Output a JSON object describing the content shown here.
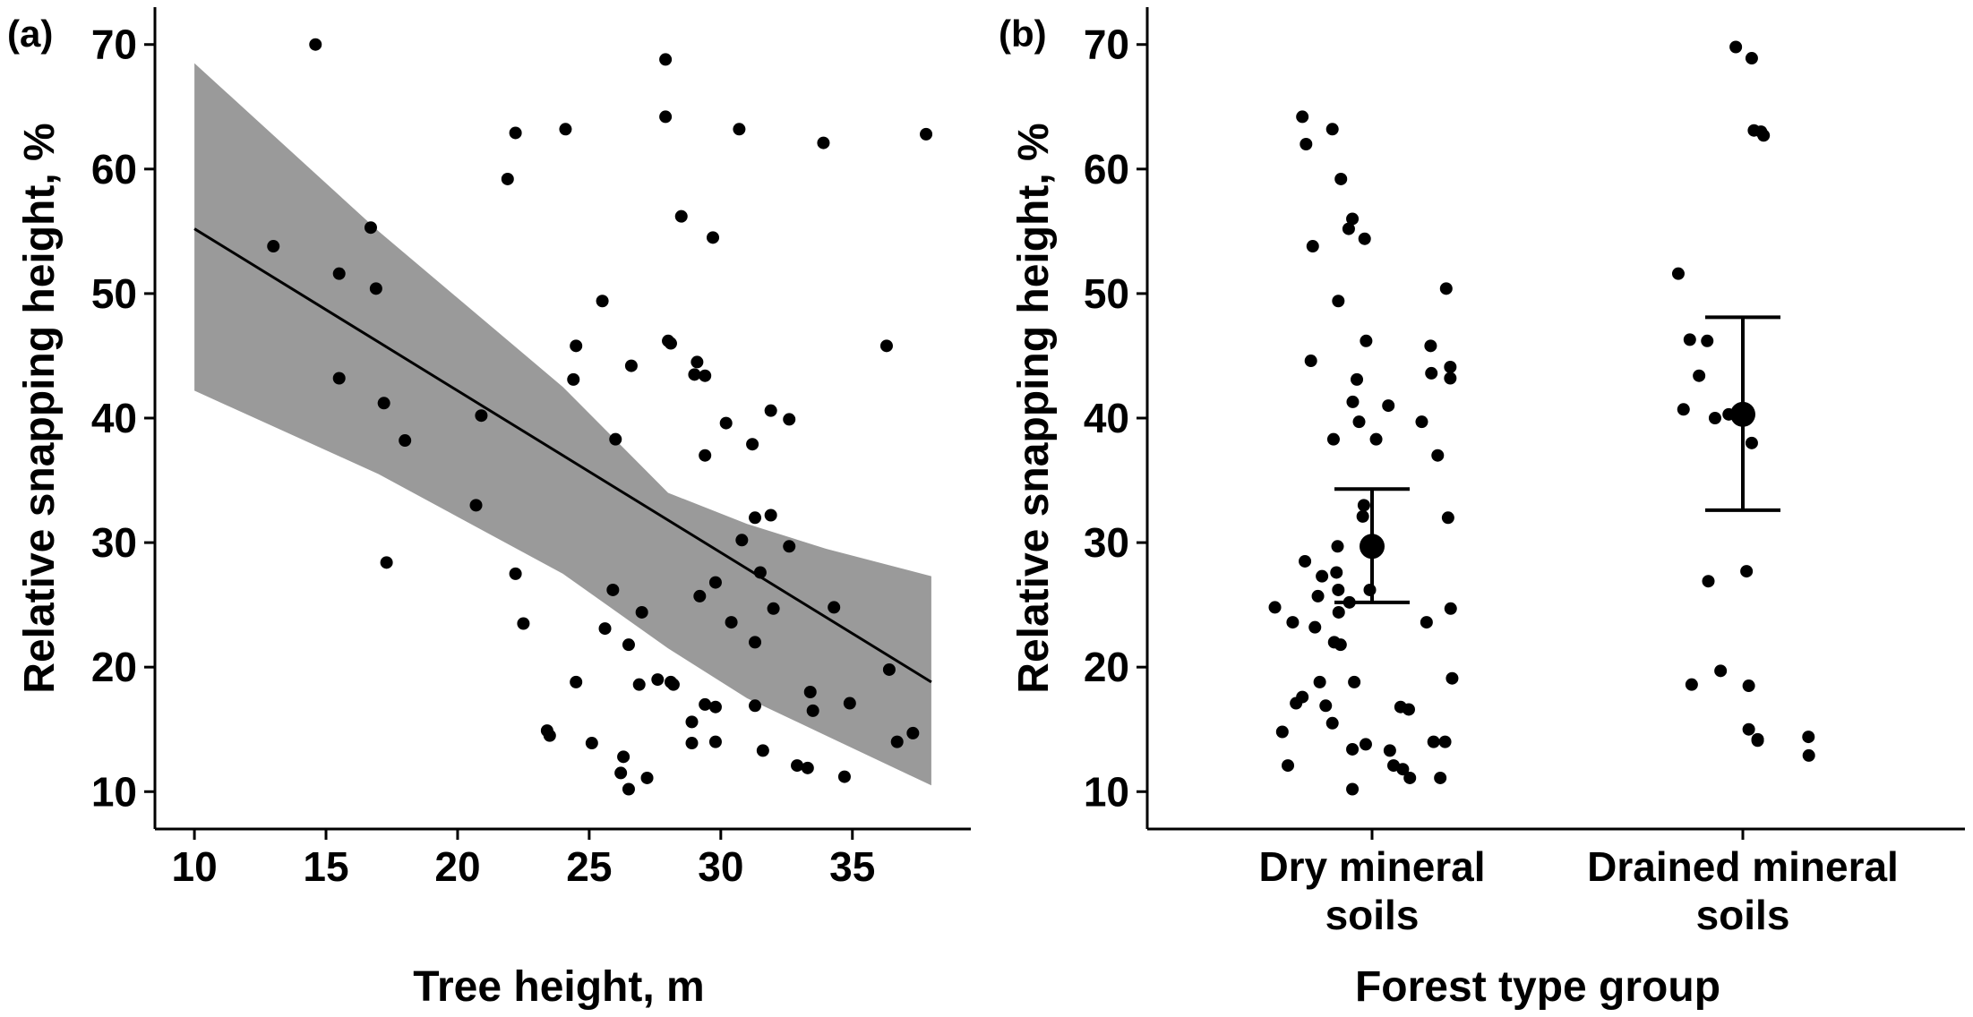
{
  "chart_data": [
    {
      "type": "scatter",
      "panel_label": "(a)",
      "xlabel": "Tree height, m",
      "ylabel": "Relative snapping height, %",
      "xlim": [
        8.5,
        39.5
      ],
      "ylim": [
        7,
        73
      ],
      "xticks": [
        10,
        15,
        20,
        25,
        30,
        35
      ],
      "yticks": [
        10,
        20,
        30,
        40,
        50,
        60,
        70
      ],
      "regression": {
        "x": [
          10,
          38
        ],
        "y": [
          55.2,
          18.8
        ],
        "ci_x": [
          10,
          17,
          24,
          28,
          31,
          34,
          38
        ],
        "ci_low": [
          42.2,
          35.5,
          27.5,
          21.5,
          17.5,
          14.5,
          10.5
        ],
        "ci_high": [
          68.5,
          55,
          42.5,
          34,
          31.5,
          29.5,
          27.3
        ]
      },
      "points": [
        [
          13.0,
          53.8
        ],
        [
          14.6,
          70.0
        ],
        [
          15.5,
          51.6
        ],
        [
          15.5,
          43.2
        ],
        [
          16.7,
          55.3
        ],
        [
          16.9,
          50.4
        ],
        [
          17.2,
          41.2
        ],
        [
          17.3,
          28.4
        ],
        [
          18.0,
          38.2
        ],
        [
          20.7,
          33.0
        ],
        [
          20.9,
          40.2
        ],
        [
          21.9,
          59.2
        ],
        [
          22.2,
          62.9
        ],
        [
          22.2,
          27.5
        ],
        [
          22.5,
          23.5
        ],
        [
          23.4,
          14.9
        ],
        [
          23.5,
          14.5
        ],
        [
          24.1,
          63.2
        ],
        [
          24.4,
          43.1
        ],
        [
          24.5,
          45.8
        ],
        [
          24.5,
          18.8
        ],
        [
          25.1,
          13.9
        ],
        [
          25.5,
          49.4
        ],
        [
          25.6,
          23.1
        ],
        [
          25.9,
          26.2
        ],
        [
          26.0,
          38.3
        ],
        [
          26.2,
          11.5
        ],
        [
          26.3,
          12.8
        ],
        [
          26.5,
          10.2
        ],
        [
          26.5,
          21.8
        ],
        [
          26.6,
          44.2
        ],
        [
          26.9,
          18.6
        ],
        [
          27.0,
          24.4
        ],
        [
          27.2,
          11.1
        ],
        [
          27.6,
          19.0
        ],
        [
          27.9,
          68.8
        ],
        [
          27.9,
          64.2
        ],
        [
          28.0,
          46.2
        ],
        [
          28.1,
          46.0
        ],
        [
          28.1,
          18.8
        ],
        [
          28.2,
          18.6
        ],
        [
          28.5,
          56.2
        ],
        [
          28.9,
          15.6
        ],
        [
          28.9,
          13.9
        ],
        [
          29.0,
          43.5
        ],
        [
          29.1,
          44.5
        ],
        [
          29.2,
          25.7
        ],
        [
          29.4,
          43.4
        ],
        [
          29.4,
          37.0
        ],
        [
          29.4,
          17.0
        ],
        [
          29.7,
          54.5
        ],
        [
          29.8,
          26.8
        ],
        [
          29.8,
          16.8
        ],
        [
          29.8,
          14.0
        ],
        [
          30.2,
          39.6
        ],
        [
          30.4,
          23.6
        ],
        [
          30.7,
          63.2
        ],
        [
          30.8,
          30.2
        ],
        [
          31.2,
          37.9
        ],
        [
          31.3,
          32.0
        ],
        [
          31.3,
          22.0
        ],
        [
          31.3,
          16.9
        ],
        [
          31.5,
          27.6
        ],
        [
          31.6,
          13.3
        ],
        [
          31.9,
          32.2
        ],
        [
          31.9,
          40.6
        ],
        [
          32.0,
          24.7
        ],
        [
          32.6,
          39.9
        ],
        [
          32.6,
          29.7
        ],
        [
          32.9,
          12.1
        ],
        [
          33.3,
          11.9
        ],
        [
          33.4,
          18.0
        ],
        [
          33.5,
          16.5
        ],
        [
          33.9,
          62.1
        ],
        [
          34.3,
          24.8
        ],
        [
          34.7,
          11.2
        ],
        [
          34.9,
          17.1
        ],
        [
          36.3,
          45.8
        ],
        [
          36.4,
          19.8
        ],
        [
          36.7,
          14.0
        ],
        [
          37.3,
          14.7
        ],
        [
          37.8,
          62.8
        ]
      ]
    },
    {
      "type": "scatter",
      "panel_label": "(b)",
      "xlabel": "Forest type group",
      "ylabel": "Relative snapping height, %",
      "ylim": [
        7,
        73
      ],
      "yticks": [
        10,
        20,
        30,
        40,
        50,
        60,
        70
      ],
      "categories": [
        "Dry mineral\nsoils",
        "Drained mineral\nsoils"
      ],
      "category_lines": [
        [
          "Dry mineral",
          "soils"
        ],
        [
          "Drained mineral",
          "soils"
        ]
      ],
      "means": [
        {
          "category": 0,
          "mean": 29.7,
          "lower": 25.2,
          "upper": 34.3
        },
        {
          "category": 1,
          "mean": 40.3,
          "lower": 32.6,
          "upper": 48.1
        }
      ],
      "points": [
        [
          -0.188,
          64.2
        ],
        [
          -0.178,
          62.0
        ],
        [
          -0.107,
          63.2
        ],
        [
          -0.084,
          59.2
        ],
        [
          -0.063,
          55.2
        ],
        [
          -0.053,
          56.0
        ],
        [
          -0.02,
          54.4
        ],
        [
          -0.16,
          53.8
        ],
        [
          0.2,
          50.4
        ],
        [
          -0.091,
          49.4
        ],
        [
          0.211,
          44.1
        ],
        [
          0.158,
          45.8
        ],
        [
          -0.165,
          44.6
        ],
        [
          -0.016,
          46.2
        ],
        [
          0.211,
          43.2
        ],
        [
          0.16,
          43.6
        ],
        [
          -0.041,
          43.1
        ],
        [
          -0.052,
          41.3
        ],
        [
          0.044,
          41.0
        ],
        [
          -0.035,
          39.7
        ],
        [
          0.134,
          39.7
        ],
        [
          -0.104,
          38.3
        ],
        [
          0.011,
          38.3
        ],
        [
          0.177,
          37.0
        ],
        [
          -0.022,
          33.0
        ],
        [
          -0.025,
          32.1
        ],
        [
          0.205,
          32.0
        ],
        [
          -0.093,
          29.7
        ],
        [
          -0.181,
          28.5
        ],
        [
          -0.096,
          27.6
        ],
        [
          -0.135,
          27.3
        ],
        [
          -0.091,
          26.2
        ],
        [
          -0.006,
          26.2
        ],
        [
          -0.146,
          25.7
        ],
        [
          -0.061,
          25.2
        ],
        [
          -0.262,
          24.8
        ],
        [
          0.212,
          24.7
        ],
        [
          -0.09,
          24.4
        ],
        [
          -0.214,
          23.6
        ],
        [
          -0.154,
          23.2
        ],
        [
          0.147,
          23.6
        ],
        [
          -0.102,
          22.0
        ],
        [
          -0.085,
          21.8
        ],
        [
          0.216,
          19.1
        ],
        [
          -0.141,
          18.8
        ],
        [
          -0.048,
          18.8
        ],
        [
          -0.188,
          17.6
        ],
        [
          -0.205,
          17.1
        ],
        [
          -0.125,
          16.9
        ],
        [
          0.077,
          16.8
        ],
        [
          0.099,
          16.6
        ],
        [
          -0.107,
          15.5
        ],
        [
          0.166,
          14.0
        ],
        [
          0.197,
          14.0
        ],
        [
          -0.242,
          14.8
        ],
        [
          -0.017,
          13.8
        ],
        [
          -0.053,
          13.4
        ],
        [
          0.048,
          13.3
        ],
        [
          0.058,
          12.1
        ],
        [
          0.083,
          11.8
        ],
        [
          -0.227,
          12.1
        ],
        [
          0.184,
          11.1
        ],
        [
          0.102,
          11.1
        ],
        [
          -0.053,
          10.2
        ],
        [
          0.826,
          51.6
        ],
        [
          0.857,
          46.3
        ],
        [
          0.904,
          46.2
        ],
        [
          0.882,
          43.4
        ],
        [
          0.925,
          40.0
        ],
        [
          0.84,
          40.7
        ],
        [
          0.962,
          40.3
        ],
        [
          1.024,
          38.0
        ],
        [
          0.981,
          69.8
        ],
        [
          1.024,
          68.9
        ],
        [
          1.03,
          63.1
        ],
        [
          1.056,
          62.7
        ],
        [
          1.049,
          63.0
        ],
        [
          0.862,
          18.6
        ],
        [
          0.94,
          19.7
        ],
        [
          1.01,
          27.7
        ],
        [
          1.016,
          18.5
        ],
        [
          0.907,
          26.9
        ],
        [
          1.016,
          15.0
        ],
        [
          1.04,
          14.2
        ],
        [
          1.04,
          14.1
        ],
        [
          1.177,
          14.4
        ],
        [
          1.178,
          12.9
        ]
      ]
    }
  ]
}
